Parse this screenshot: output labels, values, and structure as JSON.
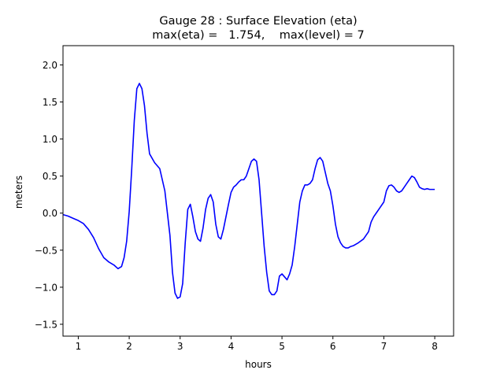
{
  "chart_data": {
    "type": "line",
    "title_line1": "Gauge 28 : Surface Elevation (eta)",
    "title_line2": "max(eta) =   1.754,    max(level) = 7",
    "xlabel": "hours",
    "ylabel": "meters",
    "xlim": [
      0.7,
      8.37
    ],
    "ylim": [
      -1.66,
      2.26
    ],
    "xticks": [
      1,
      2,
      3,
      4,
      5,
      6,
      7,
      8
    ],
    "xtick_labels": [
      "1",
      "2",
      "3",
      "4",
      "5",
      "6",
      "7",
      "8"
    ],
    "yticks": [
      -1.5,
      -1.0,
      -0.5,
      0.0,
      0.5,
      1.0,
      1.5,
      2.0
    ],
    "ytick_labels": [
      "−1.5",
      "−1.0",
      "−0.5",
      "0.0",
      "0.5",
      "1.0",
      "1.5",
      "2.0"
    ],
    "grid": false,
    "series": [
      {
        "color": "#0000ff",
        "x": [
          0.7,
          0.8,
          0.9,
          1.0,
          1.1,
          1.2,
          1.3,
          1.4,
          1.5,
          1.6,
          1.7,
          1.78,
          1.85,
          1.9,
          1.95,
          2.0,
          2.05,
          2.1,
          2.15,
          2.2,
          2.25,
          2.3,
          2.35,
          2.4,
          2.5,
          2.6,
          2.7,
          2.8,
          2.85,
          2.9,
          2.95,
          3.0,
          3.05,
          3.1,
          3.15,
          3.2,
          3.25,
          3.3,
          3.35,
          3.4,
          3.45,
          3.5,
          3.55,
          3.6,
          3.65,
          3.7,
          3.75,
          3.8,
          3.85,
          3.9,
          3.95,
          4.0,
          4.05,
          4.1,
          4.15,
          4.2,
          4.25,
          4.3,
          4.35,
          4.4,
          4.45,
          4.5,
          4.55,
          4.6,
          4.65,
          4.7,
          4.75,
          4.8,
          4.85,
          4.9,
          4.95,
          5.0,
          5.05,
          5.1,
          5.15,
          5.2,
          5.25,
          5.3,
          5.35,
          5.4,
          5.45,
          5.5,
          5.55,
          5.6,
          5.65,
          5.7,
          5.75,
          5.8,
          5.85,
          5.9,
          5.95,
          6.0,
          6.05,
          6.1,
          6.15,
          6.2,
          6.25,
          6.3,
          6.35,
          6.4,
          6.5,
          6.6,
          6.7,
          6.75,
          6.8,
          6.85,
          6.9,
          7.0,
          7.05,
          7.1,
          7.15,
          7.2,
          7.25,
          7.3,
          7.35,
          7.4,
          7.45,
          7.5,
          7.55,
          7.6,
          7.65,
          7.7,
          7.75,
          7.8,
          7.85,
          7.9,
          7.95,
          8.0
        ],
        "y": [
          -0.02,
          -0.04,
          -0.07,
          -0.1,
          -0.14,
          -0.22,
          -0.33,
          -0.48,
          -0.6,
          -0.66,
          -0.7,
          -0.75,
          -0.72,
          -0.6,
          -0.38,
          0.02,
          0.6,
          1.25,
          1.68,
          1.75,
          1.68,
          1.45,
          1.08,
          0.8,
          0.68,
          0.6,
          0.3,
          -0.3,
          -0.8,
          -1.08,
          -1.15,
          -1.13,
          -0.95,
          -0.4,
          0.05,
          0.12,
          -0.05,
          -0.25,
          -0.35,
          -0.38,
          -0.2,
          0.05,
          0.2,
          0.25,
          0.15,
          -0.15,
          -0.32,
          -0.35,
          -0.22,
          -0.05,
          0.12,
          0.28,
          0.35,
          0.38,
          0.42,
          0.45,
          0.45,
          0.5,
          0.6,
          0.7,
          0.73,
          0.7,
          0.45,
          0.0,
          -0.45,
          -0.8,
          -1.05,
          -1.1,
          -1.1,
          -1.05,
          -0.85,
          -0.82,
          -0.86,
          -0.9,
          -0.82,
          -0.7,
          -0.45,
          -0.15,
          0.15,
          0.3,
          0.38,
          0.38,
          0.4,
          0.45,
          0.6,
          0.72,
          0.75,
          0.7,
          0.55,
          0.4,
          0.3,
          0.1,
          -0.15,
          -0.32,
          -0.4,
          -0.45,
          -0.47,
          -0.47,
          -0.45,
          -0.44,
          -0.4,
          -0.35,
          -0.25,
          -0.12,
          -0.05,
          0.0,
          0.05,
          0.15,
          0.3,
          0.37,
          0.38,
          0.35,
          0.3,
          0.28,
          0.3,
          0.35,
          0.4,
          0.45,
          0.5,
          0.48,
          0.42,
          0.35,
          0.33,
          0.32,
          0.33,
          0.32,
          0.32,
          0.32
        ]
      }
    ]
  }
}
